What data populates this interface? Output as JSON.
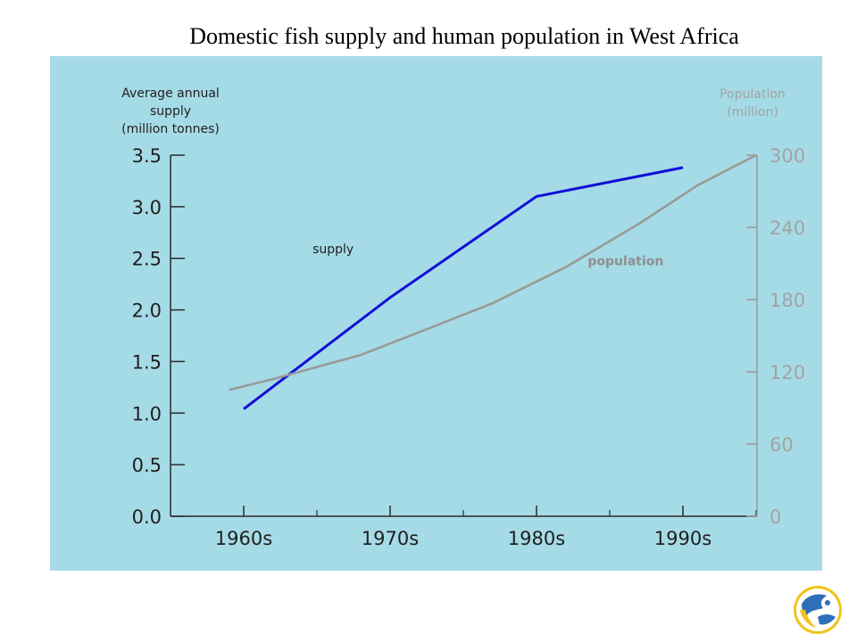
{
  "slide": {
    "title": "Domestic fish supply and human population in West Africa"
  },
  "colors": {
    "panel_bg": "#a5dbe6",
    "supply_line": "#1010d8",
    "population_line": "#999999",
    "left_axis_text": "#1f1f1f",
    "right_axis_text": "#a3a3a3"
  },
  "logo": {
    "icon": "fish-globe-logo-icon"
  },
  "chart_data": {
    "type": "line",
    "title": "",
    "x_tick_labels": [
      "1960s",
      "1970s",
      "1980s",
      "1990s"
    ],
    "left_axis": {
      "label_lines": [
        "Average annual",
        "supply",
        "(million tonnes)"
      ],
      "min": 0,
      "max": 3.5,
      "ticks": [
        {
          "value": 0,
          "label": "0.0"
        },
        {
          "value": 0.5,
          "label": "0.5"
        },
        {
          "value": 1.0,
          "label": "1.0"
        },
        {
          "value": 1.5,
          "label": "1.5"
        },
        {
          "value": 2.0,
          "label": "2.0"
        },
        {
          "value": 2.5,
          "label": "2.5"
        },
        {
          "value": 3.0,
          "label": "3.0"
        },
        {
          "value": 3.5,
          "label": "3.5"
        }
      ]
    },
    "right_axis": {
      "label_lines": [
        "Population",
        "(million)"
      ],
      "min": 0,
      "max": 300,
      "ticks": [
        {
          "value": 0,
          "label": "0"
        },
        {
          "value": 60,
          "label": "60"
        },
        {
          "value": 120,
          "label": "120"
        },
        {
          "value": 180,
          "label": "180"
        },
        {
          "value": 240,
          "label": "240"
        },
        {
          "value": 300,
          "label": "300"
        }
      ]
    },
    "series": [
      {
        "name": "supply",
        "axis": "left",
        "points": [
          {
            "x": 1960,
            "y": 1.04
          },
          {
            "x": 1970,
            "y": 2.12
          },
          {
            "x": 1980,
            "y": 3.1
          },
          {
            "x": 1990,
            "y": 3.38
          }
        ]
      },
      {
        "name": "population",
        "axis": "right",
        "points": [
          {
            "x": 1959,
            "y": 105
          },
          {
            "x": 1962,
            "y": 114
          },
          {
            "x": 1968,
            "y": 134
          },
          {
            "x": 1972,
            "y": 153
          },
          {
            "x": 1977,
            "y": 177
          },
          {
            "x": 1982,
            "y": 207
          },
          {
            "x": 1987,
            "y": 243
          },
          {
            "x": 1991,
            "y": 275
          },
          {
            "x": 1995,
            "y": 300
          }
        ]
      }
    ]
  }
}
